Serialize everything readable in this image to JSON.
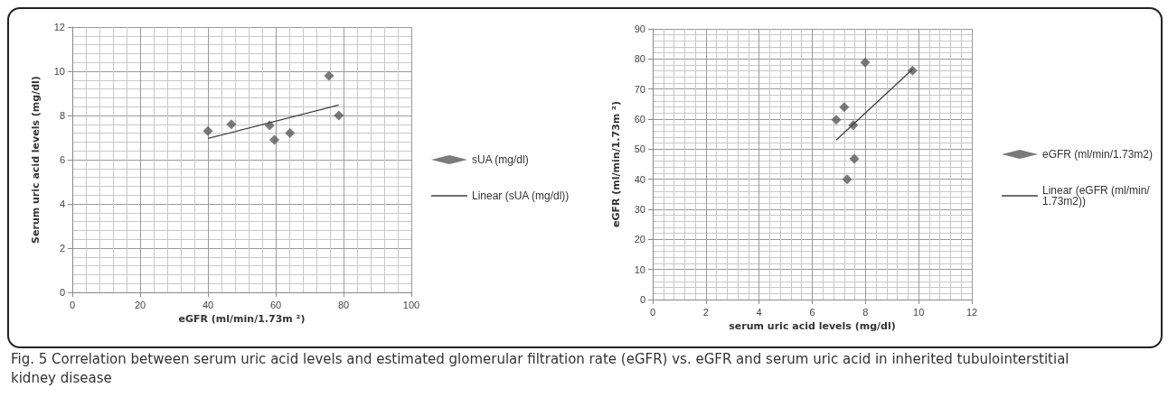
{
  "chart_data": [
    {
      "type": "scatter",
      "xlabel": "eGFR (ml/min/1.73m ²)",
      "ylabel": "Serum uric acid levels (mg/dl)",
      "xlim": [
        0,
        100
      ],
      "xticks": [
        0,
        20,
        40,
        60,
        80,
        100
      ],
      "ylim": [
        0,
        12
      ],
      "yticks": [
        0,
        2,
        4,
        6,
        8,
        10,
        12
      ],
      "grid": true,
      "legend": "right",
      "marker": "diamond",
      "series": [
        {
          "name": "sUA (mg/dl)",
          "color": "#5a5a5a",
          "x": [
            40,
            46.9,
            58.2,
            59.6,
            64.2,
            75.7,
            78.6
          ],
          "values": [
            7.3,
            7.6,
            7.55,
            6.9,
            7.2,
            9.8,
            8.0
          ]
        },
        {
          "name": "Linear (sUA (mg/dl))",
          "type": "line",
          "color": "#404040",
          "marker": "none",
          "line_style": "solid",
          "x": [
            40,
            78.6
          ],
          "values": [
            6.96,
            8.47
          ]
        }
      ],
      "annotations": [
        "Fig. 5 Correlation between serum uric acid levels and estimated glomerular filtration rate (eGFR) vs. eGFR and serum uric acid in inherited tubulointerstitial kidney disease"
      ]
    },
    {
      "type": "scatter",
      "xlabel": "serum uric acid levels (mg/dl)",
      "ylabel": "eGFR (ml/min/1.73m ²)",
      "xlim": [
        0,
        12
      ],
      "xticks": [
        0,
        2,
        4,
        6,
        8,
        10,
        12
      ],
      "ylim": [
        0,
        90
      ],
      "yticks": [
        0,
        10,
        20,
        30,
        40,
        50,
        60,
        70,
        80,
        90
      ],
      "grid": true,
      "legend": "right",
      "marker": "diamond",
      "series": [
        {
          "name": "eGFR (ml/min/1.73m2)",
          "color": "#5a5a5a",
          "x": [
            6.9,
            7.2,
            7.54,
            7.58,
            7.31,
            7.99,
            9.77
          ],
          "values": [
            59.8,
            64.0,
            58.0,
            46.8,
            40.0,
            78.8,
            76.1
          ]
        },
        {
          "name": "Linear (eGFR (ml/min/1.73m2))",
          "type": "line",
          "color": "#404040",
          "marker": "none",
          "line_style": "solid",
          "x": [
            6.9,
            9.77
          ],
          "values": [
            53.0,
            76.6
          ]
        }
      ]
    }
  ]
}
